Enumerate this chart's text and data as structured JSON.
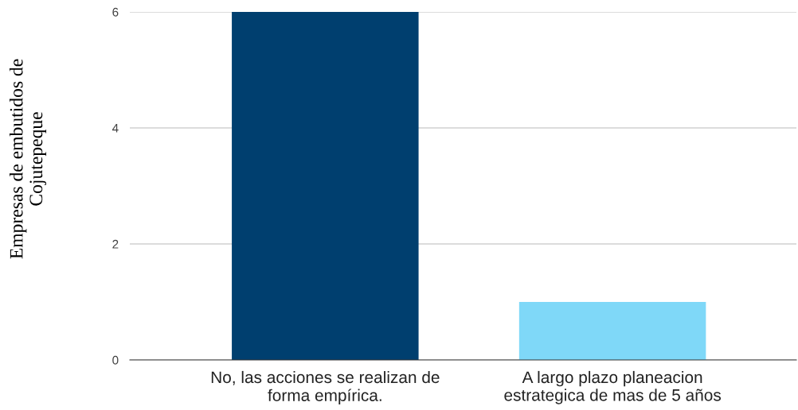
{
  "chart_data": {
    "type": "bar",
    "ylabel": "Empresas de embutidos de\nCojutepeque",
    "categories": [
      "No, las acciones se realizan de\nforma empírica.",
      "A largo plazo planeacion\nestrategica de mas de 5 años"
    ],
    "values": [
      6,
      1
    ],
    "colors": [
      "#003f6f",
      "#7fd8f8"
    ],
    "ylim": [
      0,
      6
    ],
    "yticks": [
      0,
      2,
      4,
      6
    ],
    "grid": "y",
    "legend": false
  }
}
